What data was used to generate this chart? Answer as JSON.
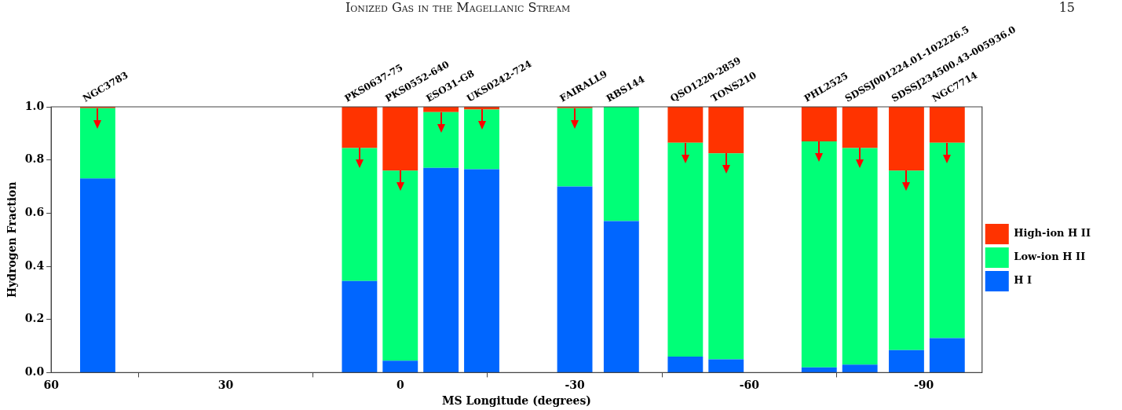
{
  "chart_data": {
    "type": "bar",
    "stacked": true,
    "xlabel": "MS Longitude (degrees)",
    "ylabel": "Hydrogen Fraction",
    "x": [
      52,
      7,
      0,
      -7,
      -14,
      -30,
      -38,
      -49,
      -56,
      -72,
      -79,
      -87,
      -94
    ],
    "series": [
      {
        "name": "H I",
        "color": "#0066ff",
        "values": [
          0.73,
          0.345,
          0.045,
          0.77,
          0.765,
          0.7,
          0.57,
          0.06,
          0.05,
          0.02,
          0.03,
          0.085,
          0.13
        ]
      },
      {
        "name": "Low-ion H II",
        "color": "#00ff77",
        "values": [
          0.265,
          0.5,
          0.715,
          0.21,
          0.225,
          0.295,
          0.43,
          0.805,
          0.775,
          0.85,
          0.815,
          0.675,
          0.735
        ]
      },
      {
        "name": "High-ion H II",
        "color": "#ff3300",
        "values": [
          0.005,
          0.155,
          0.24,
          0.02,
          0.01,
          0.005,
          0,
          0.135,
          0.175,
          0.13,
          0.155,
          0.24,
          0.135
        ]
      }
    ],
    "xlim": [
      60,
      -100
    ],
    "xticks": [
      60,
      30,
      0,
      -30,
      -60,
      -90
    ],
    "ylim": [
      0,
      1
    ],
    "yticks": [
      {
        "value": 0,
        "label": "0.0"
      },
      {
        "value": 0.2,
        "label": "0.2"
      },
      {
        "value": 0.4,
        "label": "0.4"
      },
      {
        "value": 0.6,
        "label": "0.6"
      },
      {
        "value": 0.8,
        "label": "0.8"
      },
      {
        "value": 1,
        "label": "1.0"
      }
    ],
    "grid": false,
    "legend": "right",
    "annotations": [
      "Ionized Gas in the Magellanic Stream",
      "15",
      {
        "text": "NGC3783",
        "x": 52,
        "y": 1
      },
      {
        "text": "PKS0637-75",
        "x": 7,
        "y": 1
      },
      {
        "text": "PKS0552-640",
        "x": 0,
        "y": 1
      },
      {
        "text": "ESO31-G8",
        "x": -7,
        "y": 1
      },
      {
        "text": "UKS0242-724",
        "x": -14,
        "y": 1
      },
      {
        "text": "FAIRALL9",
        "x": -30,
        "y": 1
      },
      {
        "text": "RBS144",
        "x": -38,
        "y": 1
      },
      {
        "text": "QSO1220-2859",
        "x": -49,
        "y": 1
      },
      {
        "text": "TONS210",
        "x": -56,
        "y": 1
      },
      {
        "text": "PHL2525",
        "x": -72,
        "y": 1
      },
      {
        "text": "SDSSJ001224.01-102226.5",
        "x": -79,
        "y": 1
      },
      {
        "text": "SDSSJ234500.43-005936.0",
        "x": -87,
        "y": 1
      },
      {
        "text": "NGC7714",
        "x": -94,
        "y": 1
      }
    ]
  }
}
